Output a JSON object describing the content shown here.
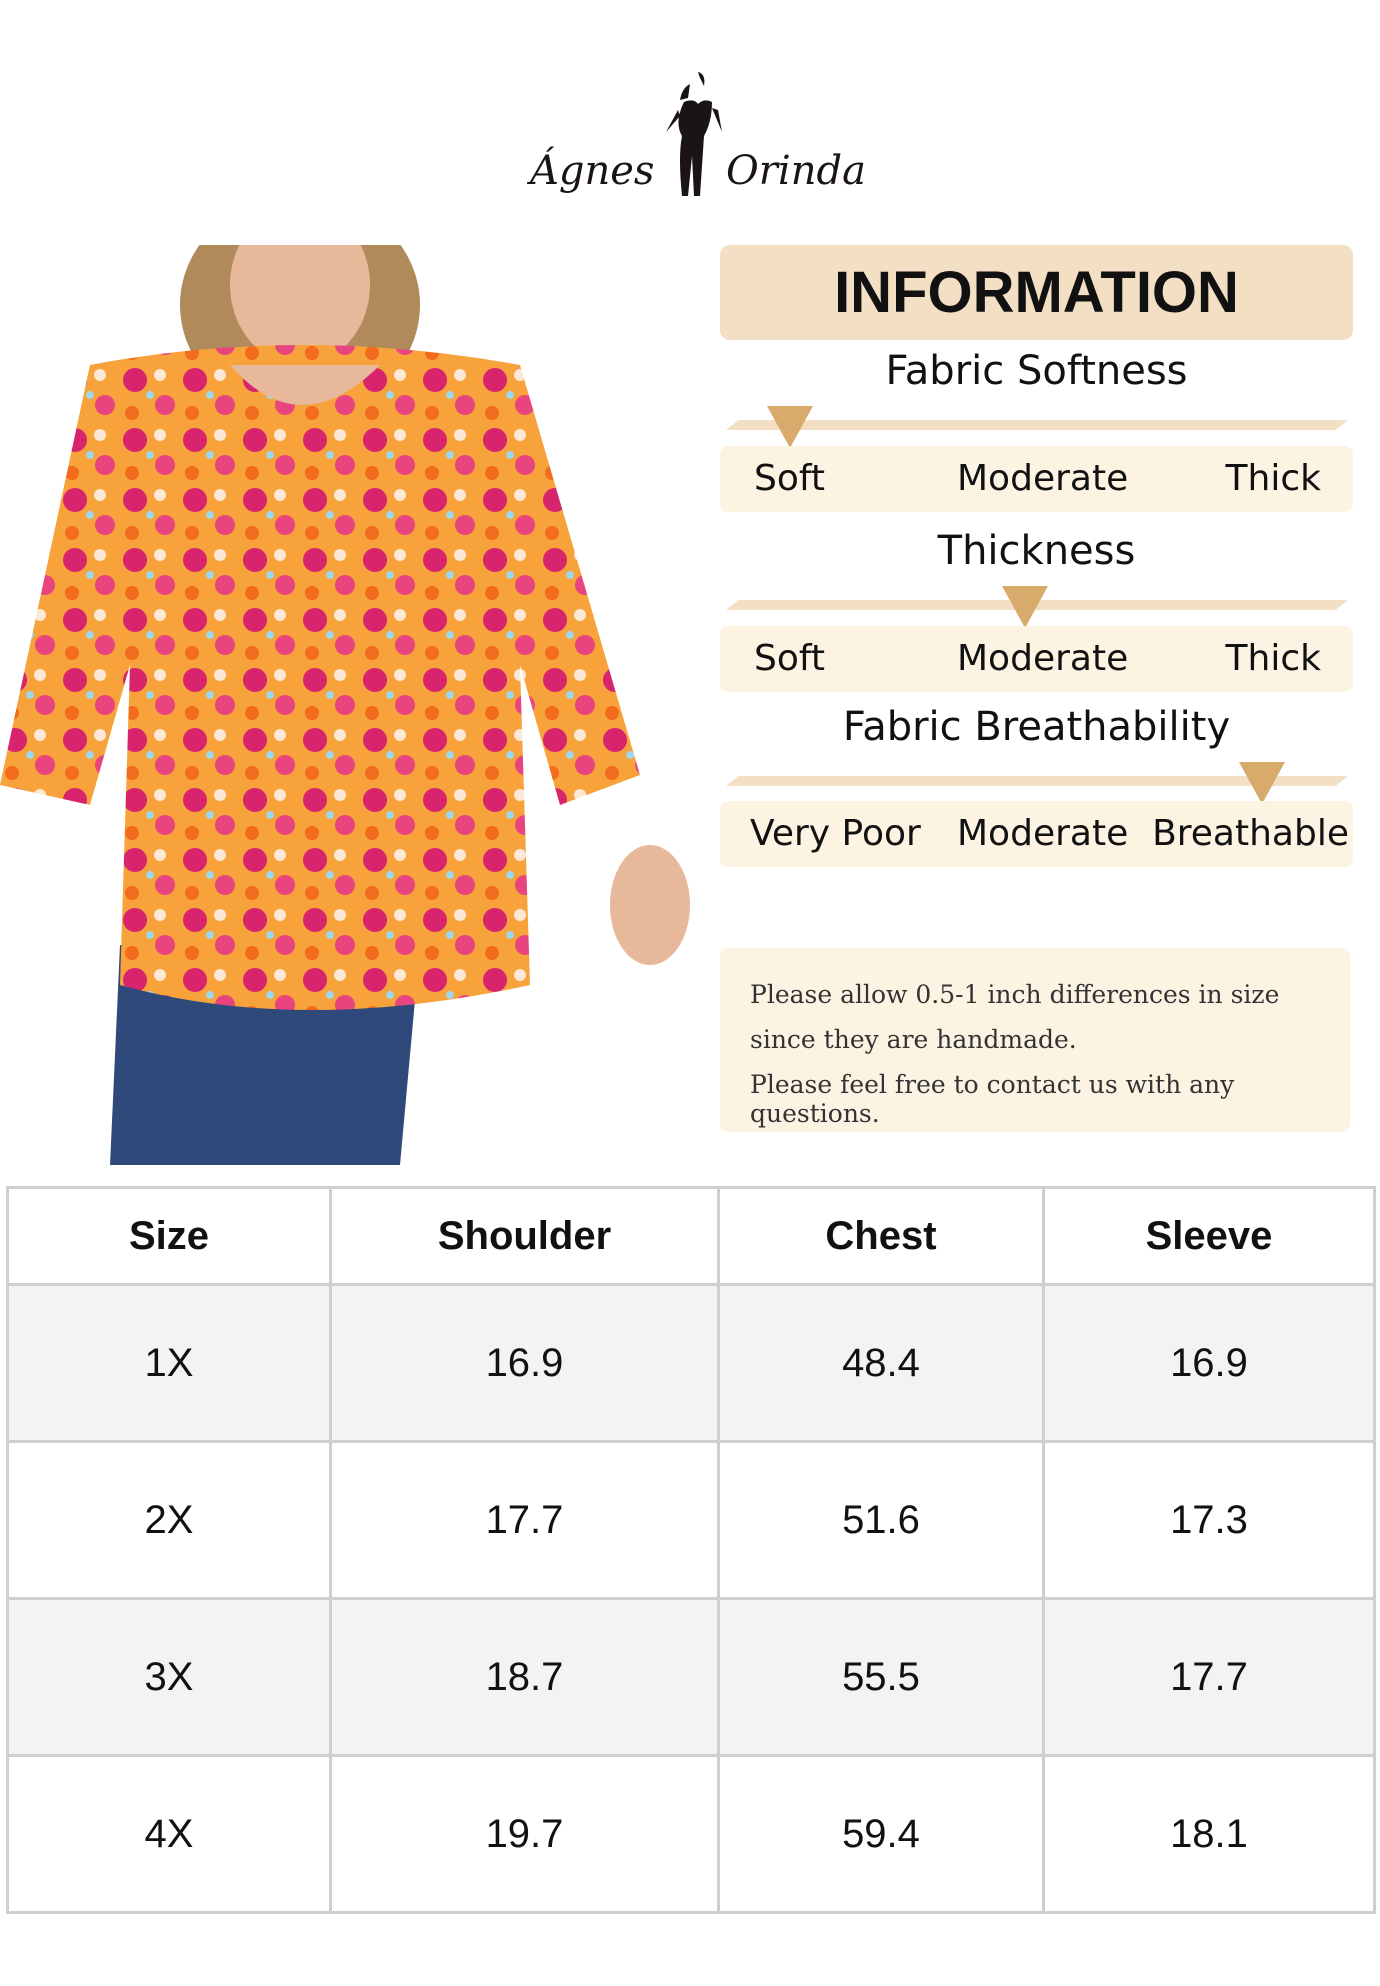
{
  "brand": {
    "name_left": "Ágnes",
    "name_right": "Orinda"
  },
  "photo": {
    "subject": "model wearing floral print top",
    "colors": {
      "pink": "#d8246c",
      "orange": "#f39a1c",
      "cream": "#fde8d8",
      "denim": "#2f4a7a"
    }
  },
  "colors": {
    "header_bg": "#f3dfc4",
    "label_bg": "#fdf3e3",
    "marker": "#d8aa6c",
    "table_alt": "#f3f3f3"
  },
  "info": {
    "title": "INFORMATION",
    "scales": [
      {
        "title": "Fabric Softness",
        "labels": [
          "Soft",
          "Moderate",
          "Thick"
        ],
        "selected": "Soft",
        "level": 0.07
      },
      {
        "title": "Thickness",
        "labels": [
          "Soft",
          "Moderate",
          "Thick"
        ],
        "selected": "Moderate",
        "level": 0.5
      },
      {
        "title": "Fabric Breathability",
        "labels": [
          "Very Poor",
          "Moderate",
          "Breathable"
        ],
        "selected": "Breathable",
        "level": 0.9
      }
    ],
    "note": [
      "Please allow 0.5-1 inch differences in size",
      "since they are handmade.",
      "Please feel free to contact us with any questions."
    ]
  },
  "size_table": {
    "headers": [
      "Size",
      "Shoulder",
      "Chest",
      "Sleeve"
    ],
    "rows": [
      [
        "1X",
        "16.9",
        "48.4",
        "16.9"
      ],
      [
        "2X",
        "17.7",
        "51.6",
        "17.3"
      ],
      [
        "3X",
        "18.7",
        "55.5",
        "17.7"
      ],
      [
        "4X",
        "19.7",
        "59.4",
        "18.1"
      ]
    ]
  }
}
